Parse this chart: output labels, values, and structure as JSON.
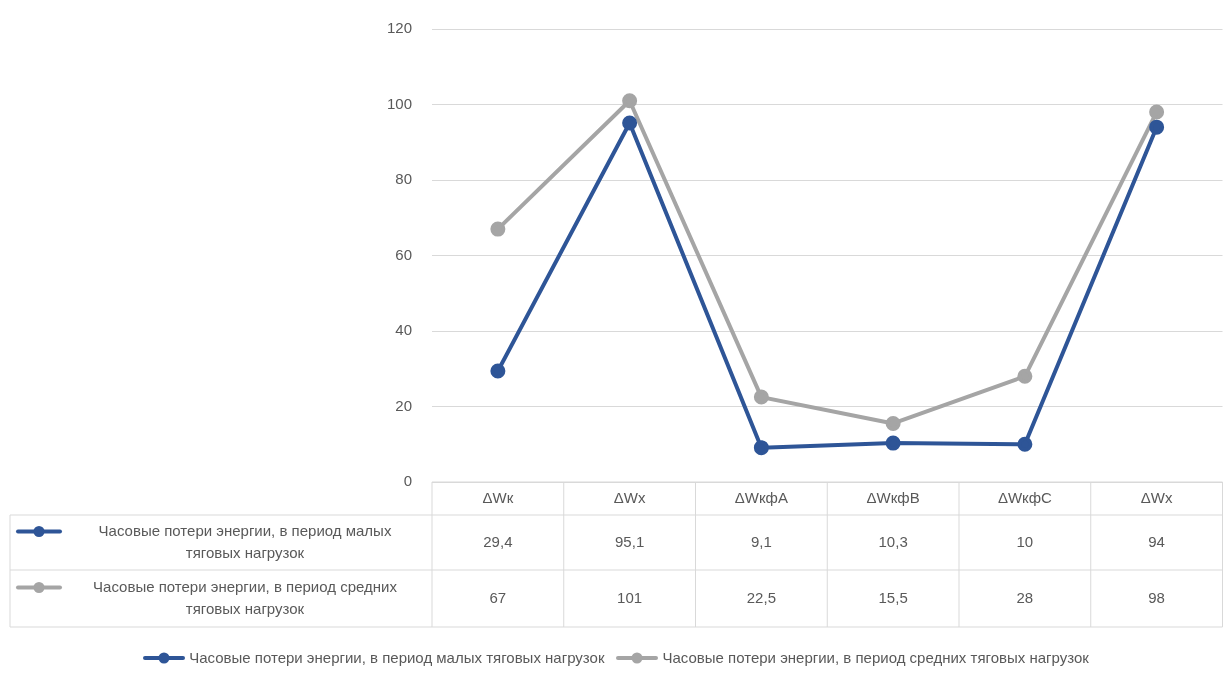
{
  "chart_data": {
    "type": "line",
    "categories": [
      "ΔWк",
      "ΔWх",
      "ΔWкфА",
      "ΔWкфВ",
      "ΔWкфС",
      "ΔWх"
    ],
    "series": [
      {
        "name": "Часовые потери энергии, в период малых тяговых нагрузок",
        "color": "#2e5597",
        "values": [
          29.4,
          95.1,
          9.1,
          10.3,
          10,
          94
        ],
        "value_labels": [
          "29,4",
          "95,1",
          "9,1",
          "10,3",
          "10",
          "94"
        ]
      },
      {
        "name": "Часовые потери энергии, в период средних тяговых нагрузок",
        "color": "#a5a5a5",
        "values": [
          67,
          101,
          22.5,
          15.5,
          28,
          98
        ],
        "value_labels": [
          "67",
          "101",
          "22,5",
          "15,5",
          "28",
          "98"
        ]
      }
    ],
    "ylim": [
      0,
      120
    ],
    "yticks": [
      0,
      20,
      40,
      60,
      80,
      100,
      120
    ],
    "grid": "y",
    "legend": "bottom",
    "marker": "circle",
    "line_style": "solid"
  }
}
